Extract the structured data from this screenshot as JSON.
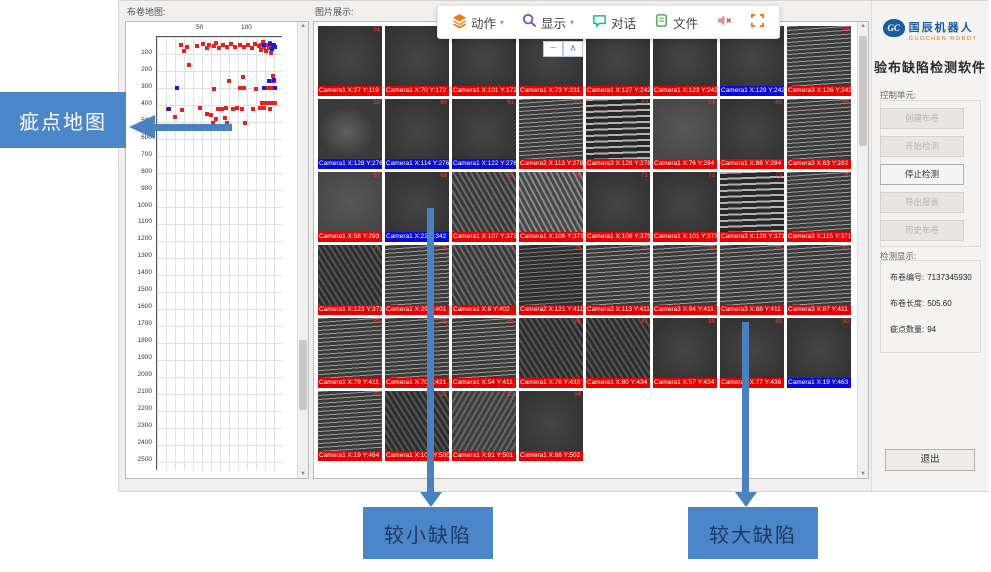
{
  "left_panel": {
    "title": "布卷地图:"
  },
  "image_panel": {
    "title": "图片展示:"
  },
  "toolbar": {
    "items": [
      {
        "label": "动作",
        "icon": "layers-icon",
        "caret": true
      },
      {
        "label": "显示",
        "icon": "magnifier-icon",
        "caret": true
      },
      {
        "label": "对话",
        "icon": "chat-icon",
        "caret": false
      },
      {
        "label": "文件",
        "icon": "file-icon",
        "caret": false
      },
      {
        "label": "",
        "icon": "mute-icon",
        "caret": false
      },
      {
        "label": "",
        "icon": "fullscreen-icon",
        "caret": false
      }
    ],
    "mini_controls": [
      "−",
      "∧"
    ]
  },
  "right_panel": {
    "logo": {
      "emblem": "GC",
      "company": "国辰机器人",
      "company_en": "GUOCHEN ROBOT"
    },
    "title": "验布缺陷检测软件",
    "control_label": "控制单元:",
    "buttons": [
      {
        "label": "创建布卷",
        "enabled": false
      },
      {
        "label": "开始检测",
        "enabled": false
      },
      {
        "label": "停止检测",
        "enabled": true
      },
      {
        "label": "导出报表",
        "enabled": false
      },
      {
        "label": "历史布卷",
        "enabled": false
      }
    ],
    "stats": {
      "title": "检测显示:",
      "rows": [
        {
          "label": "布卷编号:",
          "value": "7137345930"
        },
        {
          "label": "布卷长度:",
          "value": "505.60"
        },
        {
          "label": "疵点数量:",
          "value": "94"
        }
      ]
    },
    "exit_label": "退出"
  },
  "annotations": {
    "defect_map": "疵点地图",
    "small_defect": "较小缺陷",
    "large_defect": "较大缺陷",
    "box_color": "#4a86c8",
    "arrow_color": "#4a82c0"
  },
  "colors": {
    "label_red": "#e60000",
    "label_blue": "#0a0ad6",
    "accent_orange": "#f07818"
  },
  "chart_data": {
    "type": "scatter",
    "title": "布卷地图",
    "xlabel": "",
    "ylabel": "",
    "x_ticks": [
      50,
      100
    ],
    "y_ticks": [
      100,
      200,
      300,
      400,
      500,
      600,
      700,
      800,
      900,
      1000,
      1100,
      1200,
      1300,
      1400,
      1500,
      1600,
      1700,
      1800,
      1900,
      2000,
      2100,
      2200,
      2300,
      2400,
      2500
    ],
    "x_range": [
      0,
      135
    ],
    "y_range": [
      0,
      2560
    ],
    "grid": true,
    "legend": "none",
    "series": [
      {
        "name": "defect-red",
        "color": "#e32222",
        "points": [
          [
            27,
            45
          ],
          [
            33,
            60
          ],
          [
            30,
            80
          ],
          [
            44,
            52
          ],
          [
            51,
            40
          ],
          [
            55,
            62
          ],
          [
            58,
            48
          ],
          [
            63,
            55
          ],
          [
            66,
            38
          ],
          [
            69,
            64
          ],
          [
            73,
            50
          ],
          [
            78,
            57
          ],
          [
            82,
            42
          ],
          [
            87,
            60
          ],
          [
            92,
            45
          ],
          [
            97,
            57
          ],
          [
            101,
            48
          ],
          [
            105,
            62
          ],
          [
            109,
            40
          ],
          [
            113,
            55
          ],
          [
            116,
            45
          ],
          [
            119,
            60
          ],
          [
            122,
            50
          ],
          [
            118,
            32
          ],
          [
            125,
            34
          ],
          [
            128,
            45
          ],
          [
            124,
            62
          ],
          [
            115,
            78
          ],
          [
            121,
            85
          ],
          [
            127,
            92
          ],
          [
            130,
            60
          ],
          [
            36,
            165
          ],
          [
            95,
            235
          ],
          [
            129,
            230
          ],
          [
            80,
            258
          ],
          [
            125,
            260
          ],
          [
            130,
            262
          ],
          [
            63,
            305
          ],
          [
            92,
            300
          ],
          [
            97,
            302
          ],
          [
            110,
            305
          ],
          [
            122,
            300
          ],
          [
            127,
            302
          ],
          [
            117,
            388
          ],
          [
            121,
            390
          ],
          [
            125,
            388
          ],
          [
            129,
            392
          ],
          [
            131,
            390
          ],
          [
            12,
            425
          ],
          [
            28,
            430
          ],
          [
            48,
            418
          ],
          [
            55,
            452
          ],
          [
            68,
            422
          ],
          [
            72,
            425
          ],
          [
            77,
            420
          ],
          [
            84,
            422
          ],
          [
            89,
            420
          ],
          [
            94,
            423
          ],
          [
            107,
            422
          ],
          [
            114,
            420
          ],
          [
            119,
            418
          ],
          [
            125,
            422
          ],
          [
            20,
            472
          ],
          [
            60,
            458
          ],
          [
            66,
            482
          ],
          [
            75,
            480
          ],
          [
            62,
            508
          ],
          [
            78,
            505
          ],
          [
            98,
            508
          ]
        ]
      },
      {
        "name": "defect-blue",
        "color": "#1a1ae0",
        "points": [
          [
            126,
            40
          ],
          [
            130,
            48
          ],
          [
            131,
            58
          ],
          [
            119,
            50
          ],
          [
            128,
            70
          ],
          [
            22,
            303
          ],
          [
            124,
            258
          ],
          [
            130,
            256
          ],
          [
            119,
            300
          ],
          [
            131,
            300
          ],
          [
            13,
            422
          ]
        ]
      }
    ]
  },
  "tiles": [
    {
      "label": "Camera1 X:27 Y:119",
      "color": "red",
      "texture": "dark",
      "id": 51
    },
    {
      "label": "Camera1 X:70 Y:172",
      "color": "red",
      "texture": "dark",
      "id": 52
    },
    {
      "label": "Camera1 X:101 Y:172",
      "color": "red",
      "texture": "dark",
      "id": 53
    },
    {
      "label": "Camera1 X:73 Y:231",
      "color": "red",
      "texture": "dark",
      "id": 54
    },
    {
      "label": "Camera1 X:127 Y:242",
      "color": "red",
      "texture": "dark",
      "id": 55
    },
    {
      "label": "Camera1 X:123 Y:242",
      "color": "red",
      "texture": "dark",
      "id": 56
    },
    {
      "label": "Camera1 X:129 Y:242",
      "color": "blue",
      "texture": "dark",
      "id": 57
    },
    {
      "label": "Camera3 X:126 Y:242",
      "color": "red",
      "texture": "stripes",
      "id": 58
    },
    {
      "label": "Camera1 X:128 Y:276",
      "color": "blue",
      "texture": "darknoise",
      "id": 59
    },
    {
      "label": "Camera1 X:114 Y:276",
      "color": "blue",
      "texture": "dark",
      "id": 60
    },
    {
      "label": "Camera1 X:122 Y:276",
      "color": "blue",
      "texture": "dark",
      "id": 61
    },
    {
      "label": "Camera2 X:113 Y:278",
      "color": "red",
      "texture": "stripes",
      "id": 62
    },
    {
      "label": "Camera3 X:128 Y:278",
      "color": "red",
      "texture": "stripescoarse",
      "id": 63
    },
    {
      "label": "Camera1 X:76 Y:284",
      "color": "red",
      "texture": "mid",
      "id": 64
    },
    {
      "label": "Camera1 X:88 Y:284",
      "color": "red",
      "texture": "dark",
      "id": 65
    },
    {
      "label": "Camera3 X:83 Y:282",
      "color": "red",
      "texture": "stripes",
      "id": 66
    },
    {
      "label": "Camera1 X:58 Y:293",
      "color": "red",
      "texture": "mid",
      "id": 67
    },
    {
      "label": "Camera1 X:22 Y:342",
      "color": "blue",
      "texture": "dark",
      "id": 68
    },
    {
      "label": "Camera1 X:107 Y:373",
      "color": "red",
      "texture": "weave",
      "id": 69
    },
    {
      "label": "Camera1 X:106 Y:373",
      "color": "red",
      "texture": "weavelight",
      "id": 70
    },
    {
      "label": "Camera1 X:106 Y:375",
      "color": "red",
      "texture": "dark",
      "id": 71
    },
    {
      "label": "Camera1 X:101 Y:373",
      "color": "red",
      "texture": "dark",
      "id": 72
    },
    {
      "label": "Camera3 X:128 Y:371",
      "color": "red",
      "texture": "stripescoarse",
      "id": 73
    },
    {
      "label": "Camera3 X:115 Y:371",
      "color": "red",
      "texture": "stripes",
      "id": 74
    },
    {
      "label": "Camera1 X:123 Y:371",
      "color": "red",
      "texture": "weavedark",
      "id": 75
    },
    {
      "label": "Camera1 X:29 Y:401",
      "color": "red",
      "texture": "stripes",
      "id": 76
    },
    {
      "label": "Camera1 X:9 Y:402",
      "color": "red",
      "texture": "weave",
      "id": 77
    },
    {
      "label": "Camera2 X:121 Y:411",
      "color": "red",
      "texture": "stripesdark",
      "id": 78
    },
    {
      "label": "Camera3 X:113 Y:411",
      "color": "red",
      "texture": "stripes",
      "id": 79
    },
    {
      "label": "Camera3 X:94 Y:411",
      "color": "red",
      "texture": "stripes",
      "id": 80
    },
    {
      "label": "Camera3 X:88 Y:411",
      "color": "red",
      "texture": "stripes",
      "id": 81
    },
    {
      "label": "Camera3 X:87 Y:411",
      "color": "red",
      "texture": "stripes",
      "id": 82
    },
    {
      "label": "Camera1 X:79 Y:411",
      "color": "red",
      "texture": "stripes",
      "id": 83
    },
    {
      "label": "Camera1 X:70 Y:421",
      "color": "red",
      "texture": "stripes",
      "id": 84
    },
    {
      "label": "Camera1 X:54 Y:411",
      "color": "red",
      "texture": "stripes",
      "id": 85
    },
    {
      "label": "Camera1 X:76 Y:433",
      "color": "red",
      "texture": "weavedark",
      "id": 86
    },
    {
      "label": "Camera1 X:80 Y:434",
      "color": "red",
      "texture": "weavedark",
      "id": 87
    },
    {
      "label": "Camera1 X:57 Y:434",
      "color": "red",
      "texture": "dark",
      "id": 88
    },
    {
      "label": "Camera1 X:77 Y:436",
      "color": "red",
      "texture": "dark",
      "id": 89
    },
    {
      "label": "Camera1 X:19 Y:463",
      "color": "blue",
      "texture": "dark",
      "id": 90
    },
    {
      "label": "Camera1 X:19 Y:464",
      "color": "red",
      "texture": "stripes",
      "id": 91
    },
    {
      "label": "Camera1 X:103 Y:500",
      "color": "red",
      "texture": "weavedark",
      "id": 92
    },
    {
      "label": "Camera1 X:91 Y:501",
      "color": "red",
      "texture": "weavemid",
      "id": 93
    },
    {
      "label": "Camera1 X:66 Y:502",
      "color": "red",
      "texture": "dark",
      "id": 94
    }
  ]
}
